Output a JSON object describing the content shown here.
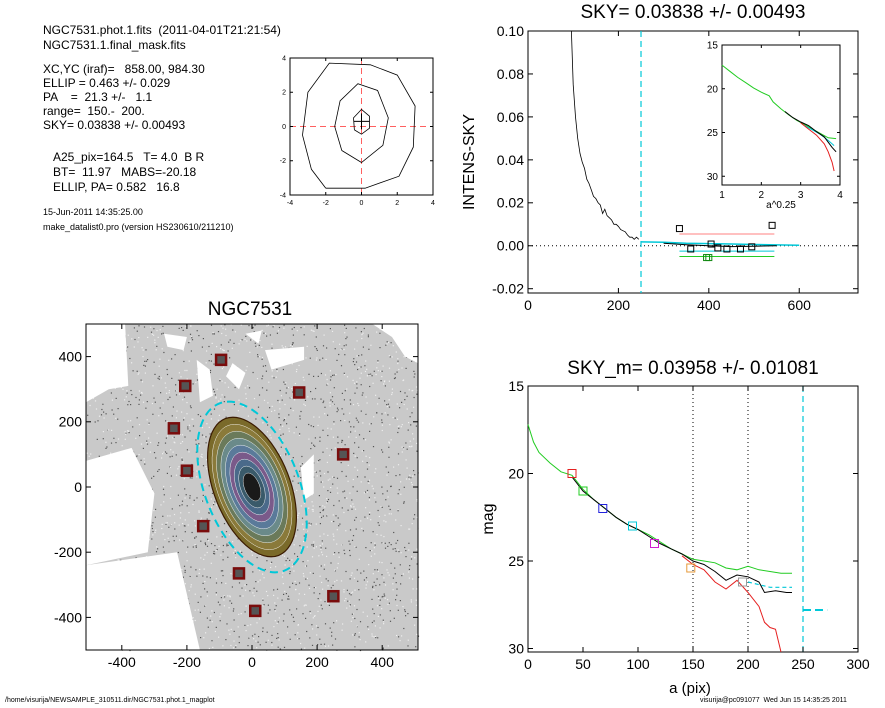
{
  "header": {
    "line1": "NGC7531.phot.1.fits  (2011-04-01T21:21:54)",
    "line2": "NGC7531.1.final_mask.fits",
    "params": [
      "XC,YC (iraf)=   858.00, 984.30",
      "ELLIP = 0.463 +/- 0.029",
      "PA    =  21.3 +/-   1.1",
      "range=  150.-  200.",
      "SKY= 0.03838 +/- 0.00493"
    ],
    "params2": [
      "A25_pix=164.5   T= 4.0  B R",
      "BT=  11.97   MABS=-20.18",
      "ELLIP, PA= 0.582   16.8"
    ],
    "date": "15-Jun-2011 14:35:25.00",
    "program": "make_datalist0.pro (version HS230610/211210)"
  },
  "footer": {
    "path": "/home/visurija/NEWSAMPLE_310511.dir/NGC7531.phot.1_magplot",
    "user": "visurija@pc091077  Wed Jun 15 14:35:25 2011"
  },
  "colors": {
    "black": "#000000",
    "green": "#22cc22",
    "red": "#e52020",
    "blue": "#2222dd",
    "cyan": "#00c8d8",
    "magenta": "#d020d0",
    "orange": "#e69a3a",
    "salmon": "#ff8080",
    "dashred": "#ff6060",
    "maroon": "#7a0c0c"
  },
  "chart_data": [
    {
      "id": "contour",
      "type": "line",
      "title": "",
      "xlim": [
        -4,
        4
      ],
      "ylim": [
        -4,
        4
      ],
      "xticks": [
        -4,
        -2,
        0,
        2,
        4
      ],
      "yticks": [
        -4,
        -2,
        0,
        2,
        4
      ],
      "contours": [
        [
          [
            -2,
            -3.6
          ],
          [
            -2.8,
            -2.5
          ],
          [
            -3.3,
            -0.5
          ],
          [
            -3,
            2
          ],
          [
            -1.8,
            3.7
          ],
          [
            0.5,
            3.6
          ],
          [
            2,
            3
          ],
          [
            3,
            1.2
          ],
          [
            2.9,
            -1.2
          ],
          [
            2.1,
            -2.9
          ],
          [
            0.2,
            -3.6
          ],
          [
            -2,
            -3.6
          ]
        ],
        [
          [
            -1.1,
            -1.4
          ],
          [
            -1.5,
            0
          ],
          [
            -1.2,
            1.5
          ],
          [
            -0.2,
            2.5
          ],
          [
            0.9,
            2.1
          ],
          [
            1.5,
            0.5
          ],
          [
            1.2,
            -1.1
          ],
          [
            0,
            -2.1
          ],
          [
            -1.1,
            -1.4
          ]
        ],
        [
          [
            -0.4,
            -0.2
          ],
          [
            -0.45,
            0.5
          ],
          [
            0,
            1
          ],
          [
            0.45,
            0.6
          ],
          [
            0.45,
            -0.1
          ],
          [
            0,
            -0.45
          ],
          [
            -0.4,
            -0.2
          ]
        ]
      ],
      "cross_center": [
        0,
        0.3
      ]
    },
    {
      "id": "sky",
      "type": "line",
      "title": "SKY= 0.03838 +/- 0.00493",
      "ylabel": "INTENS-SKY",
      "xlim": [
        0,
        730
      ],
      "ylim": [
        -0.022,
        0.1
      ],
      "xticks": [
        0,
        200,
        400,
        600
      ],
      "yticks": [
        -0.02,
        0.0,
        0.02,
        0.04,
        0.06,
        0.08,
        0.1
      ],
      "yticklabels": [
        "-0.02",
        "0.00",
        "0.02",
        "0.04",
        "0.06",
        "0.08",
        "0.10"
      ],
      "profile": [
        [
          96,
          0.1
        ],
        [
          100,
          0.075
        ],
        [
          105,
          0.06
        ],
        [
          110,
          0.05
        ],
        [
          115,
          0.043
        ],
        [
          120,
          0.039
        ],
        [
          125,
          0.036
        ],
        [
          130,
          0.031
        ],
        [
          135,
          0.029
        ],
        [
          140,
          0.026
        ],
        [
          145,
          0.023
        ],
        [
          150,
          0.022
        ],
        [
          155,
          0.02
        ],
        [
          160,
          0.019
        ],
        [
          165,
          0.015
        ],
        [
          170,
          0.017
        ],
        [
          175,
          0.014
        ],
        [
          180,
          0.013
        ],
        [
          185,
          0.012
        ],
        [
          190,
          0.01
        ],
        [
          195,
          0.01
        ],
        [
          200,
          0.009
        ],
        [
          205,
          0.0075
        ],
        [
          210,
          0.007
        ],
        [
          215,
          0.0065
        ],
        [
          220,
          0.005
        ],
        [
          225,
          0.004
        ],
        [
          230,
          0.004
        ],
        [
          235,
          0.003
        ],
        [
          240,
          0.004
        ],
        [
          245,
          0.003
        ]
      ],
      "sky_profile": [
        [
          250,
          0.0018
        ],
        [
          300,
          0.0016
        ],
        [
          350,
          0.0012
        ],
        [
          400,
          0.001
        ],
        [
          450,
          0.0008
        ],
        [
          500,
          0.0006
        ],
        [
          550,
          0.0004
        ],
        [
          600,
          0.0002
        ]
      ],
      "sky_profile2": [
        [
          300,
          0.0012
        ],
        [
          350,
          0.0005
        ],
        [
          400,
          0
        ],
        [
          450,
          -0.0004
        ],
        [
          500,
          -0.0002
        ],
        [
          550,
          0
        ]
      ],
      "squares": [
        [
          335,
          0.008
        ],
        [
          360,
          -0.0015
        ],
        [
          395,
          -0.0055
        ],
        [
          400,
          -0.0055
        ],
        [
          405,
          0.0008
        ],
        [
          420,
          -0.001
        ],
        [
          440,
          -0.0015
        ],
        [
          470,
          -0.0015
        ],
        [
          495,
          -0.0005
        ],
        [
          540,
          0.0095
        ]
      ],
      "square_colors": [
        "#000000",
        "#000000",
        "#118811",
        "#118811",
        "#000000",
        "#000000",
        "#000000",
        "#000000",
        "#000000",
        "#000000"
      ],
      "hlines": [
        {
          "y": 0.0055,
          "x": [
            335,
            545
          ],
          "color": "#ff8080"
        },
        {
          "y": -0.005,
          "x": [
            335,
            545
          ],
          "color": "#22cc22"
        },
        {
          "y": -0.0025,
          "x": [
            335,
            545
          ],
          "color": "#00c8d8"
        }
      ],
      "vline_x": 250,
      "inset": {
        "xlabel": "a^0.25",
        "xlim": [
          1,
          4
        ],
        "ylim": [
          15,
          31
        ],
        "xticks": [
          1,
          2,
          3,
          4
        ],
        "yticks": [
          15,
          20,
          25,
          30
        ],
        "green": [
          [
            1,
            17.3
          ],
          [
            1.2,
            18
          ],
          [
            1.4,
            18.7
          ],
          [
            1.6,
            19.3
          ],
          [
            1.8,
            19.9
          ],
          [
            2,
            20.4
          ],
          [
            2.2,
            20.8
          ],
          [
            2.3,
            21.5
          ],
          [
            2.5,
            22.3
          ],
          [
            2.7,
            23
          ],
          [
            2.9,
            23.6
          ],
          [
            3.1,
            24.1
          ],
          [
            3.3,
            24.6
          ],
          [
            3.5,
            25.1
          ],
          [
            3.7,
            25.6
          ],
          [
            3.9,
            25.7
          ]
        ],
        "black": [
          [
            2.6,
            22.6
          ],
          [
            2.8,
            23.3
          ],
          [
            3,
            23.8
          ],
          [
            3.2,
            24.2
          ],
          [
            3.4,
            24.9
          ],
          [
            3.6,
            25.5
          ],
          [
            3.8,
            26.7
          ],
          [
            3.9,
            27.2
          ]
        ],
        "red": [
          [
            3,
            23.9
          ],
          [
            3.2,
            24.6
          ],
          [
            3.4,
            25.3
          ],
          [
            3.6,
            26.3
          ],
          [
            3.7,
            27.2
          ],
          [
            3.8,
            28.4
          ],
          [
            3.85,
            29.4
          ]
        ],
        "teal": [
          [
            3.1,
            24.2
          ],
          [
            3.3,
            24.7
          ],
          [
            3.5,
            25.2
          ],
          [
            3.7,
            25.9
          ],
          [
            3.85,
            26.5
          ]
        ]
      }
    },
    {
      "id": "image",
      "type": "scatter",
      "title": "NGC7531",
      "xlim": [
        -510,
        510
      ],
      "ylim": [
        -500,
        500
      ],
      "xticks": [
        -400,
        -200,
        0,
        200,
        400
      ],
      "yticks": [
        -400,
        -200,
        0,
        200,
        400
      ],
      "stars": [
        [
          -95,
          390
        ],
        [
          -205,
          310
        ],
        [
          145,
          290
        ],
        [
          -240,
          180
        ],
        [
          -200,
          50
        ],
        [
          280,
          100
        ],
        [
          -150,
          -120
        ],
        [
          -40,
          -265
        ],
        [
          10,
          -380
        ],
        [
          250,
          -335
        ]
      ],
      "ellipse_inner": {
        "a": 225,
        "b": 117,
        "pa_deg": 21.3
      },
      "ellipse_outer": {
        "a": 275,
        "b": 145,
        "pa_deg": 21.3
      }
    },
    {
      "id": "mag",
      "type": "line",
      "title": "SKY_m=  0.03958 +/- 0.01081",
      "xlabel": "a (pix)",
      "ylabel": "mag",
      "xlim": [
        0,
        300
      ],
      "ylim": [
        15,
        30.2
      ],
      "xticks": [
        0,
        50,
        100,
        150,
        200,
        250,
        300
      ],
      "yticks": [
        15,
        20,
        25,
        30
      ],
      "vlines": [
        150,
        200
      ],
      "sky_vline": 250,
      "green": [
        [
          0,
          17.2
        ],
        [
          5,
          18.2
        ],
        [
          10,
          18.8
        ],
        [
          20,
          19.4
        ],
        [
          30,
          19.9
        ],
        [
          40,
          20.1
        ],
        [
          50,
          20.9
        ],
        [
          60,
          21.5
        ],
        [
          70,
          22
        ],
        [
          80,
          22.5
        ],
        [
          90,
          22.9
        ],
        [
          100,
          23.2
        ],
        [
          110,
          23.5
        ],
        [
          120,
          23.9
        ],
        [
          130,
          24.3
        ],
        [
          140,
          24.6
        ],
        [
          150,
          24.9
        ],
        [
          160,
          25
        ],
        [
          170,
          25.1
        ],
        [
          180,
          25.4
        ],
        [
          190,
          25.5
        ],
        [
          200,
          25.3
        ],
        [
          210,
          25.5
        ],
        [
          220,
          25.6
        ],
        [
          230,
          25.7
        ],
        [
          240,
          25.7
        ]
      ],
      "black": [
        [
          40,
          20.2
        ],
        [
          50,
          21
        ],
        [
          60,
          21.5
        ],
        [
          70,
          22
        ],
        [
          80,
          22.5
        ],
        [
          90,
          22.9
        ],
        [
          100,
          23.2
        ],
        [
          110,
          23.6
        ],
        [
          120,
          24
        ],
        [
          130,
          24.3
        ],
        [
          140,
          24.6
        ],
        [
          150,
          25
        ],
        [
          160,
          25.2
        ],
        [
          170,
          25.6
        ],
        [
          180,
          26.1
        ],
        [
          190,
          25.8
        ],
        [
          200,
          25.9
        ],
        [
          210,
          26.2
        ],
        [
          215,
          26.8
        ],
        [
          225,
          26.7
        ],
        [
          235,
          26.8
        ],
        [
          240,
          26.8
        ]
      ],
      "red": [
        [
          140,
          24.7
        ],
        [
          150,
          25.2
        ],
        [
          160,
          25.5
        ],
        [
          170,
          26.2
        ],
        [
          180,
          26.6
        ],
        [
          190,
          26.1
        ],
        [
          200,
          26.8
        ],
        [
          210,
          27.6
        ],
        [
          215,
          28.5
        ],
        [
          220,
          28.8
        ],
        [
          225,
          28.9
        ],
        [
          230,
          30.2
        ]
      ],
      "tealdash": [
        [
          200,
          26.2
        ],
        [
          220,
          26.5
        ],
        [
          240,
          26.5
        ]
      ],
      "sky_seg": [
        [
          250,
          27.8
        ],
        [
          272,
          27.8
        ]
      ],
      "squares": [
        [
          40,
          20
        ],
        [
          50,
          21
        ],
        [
          68,
          22
        ],
        [
          95,
          23
        ],
        [
          115,
          24
        ],
        [
          148,
          25.4
        ],
        [
          195,
          26.2
        ]
      ],
      "square_colors": [
        "#e52020",
        "#22cc22",
        "#2222dd",
        "#00c8d8",
        "#d020d0",
        "#e69a3a",
        "#999999"
      ]
    }
  ]
}
